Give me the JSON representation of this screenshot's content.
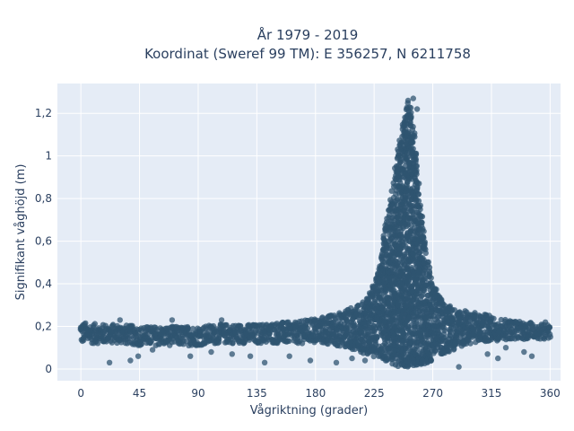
{
  "chart_data": {
    "type": "scatter",
    "title_line1": "År 1979 - 2019",
    "title_line2": "Koordinat (Sweref 99 TM): E 356257, N 6211758",
    "xlabel": "Vågriktning (grader)",
    "ylabel": "Signifikant våghöjd (m)",
    "xlim": [
      -18,
      368
    ],
    "ylim": [
      -0.055,
      1.34
    ],
    "x_ticks": [
      0,
      45,
      90,
      135,
      180,
      225,
      270,
      315,
      360
    ],
    "y_ticks": [
      0,
      0.2,
      0.4,
      0.6,
      0.8,
      1,
      1.2
    ],
    "y_tick_labels": [
      "0",
      "0,2",
      "0,4",
      "0,6",
      "0,8",
      "1",
      "1,2"
    ],
    "grid": true,
    "marker_color": "#2f5470",
    "plot_bg": "#e5ecf6",
    "series": [
      {
        "band_envelope": [
          [
            0,
            0.12,
            0.22
          ],
          [
            15,
            0.12,
            0.21
          ],
          [
            30,
            0.12,
            0.21
          ],
          [
            45,
            0.11,
            0.2
          ],
          [
            60,
            0.11,
            0.2
          ],
          [
            75,
            0.11,
            0.2
          ],
          [
            90,
            0.11,
            0.2
          ],
          [
            105,
            0.12,
            0.21
          ],
          [
            120,
            0.12,
            0.21
          ],
          [
            135,
            0.12,
            0.21
          ],
          [
            150,
            0.12,
            0.22
          ],
          [
            165,
            0.12,
            0.22
          ],
          [
            180,
            0.12,
            0.24
          ],
          [
            195,
            0.11,
            0.26
          ],
          [
            205,
            0.1,
            0.28
          ],
          [
            215,
            0.08,
            0.31
          ],
          [
            222,
            0.06,
            0.36
          ],
          [
            228,
            0.05,
            0.45
          ],
          [
            232,
            0.04,
            0.6
          ],
          [
            236,
            0.03,
            0.75
          ],
          [
            240,
            0.02,
            0.9
          ],
          [
            244,
            0.01,
            1.05
          ],
          [
            247,
            0.01,
            1.15
          ],
          [
            250,
            0.01,
            1.24
          ],
          [
            252,
            0.01,
            1.27
          ],
          [
            254,
            0.01,
            1.2
          ],
          [
            256,
            0.01,
            1.1
          ],
          [
            258,
            0.01,
            0.97
          ],
          [
            260,
            0.02,
            0.82
          ],
          [
            263,
            0.02,
            0.65
          ],
          [
            266,
            0.03,
            0.52
          ],
          [
            270,
            0.04,
            0.42
          ],
          [
            275,
            0.06,
            0.34
          ],
          [
            282,
            0.08,
            0.3
          ],
          [
            290,
            0.1,
            0.28
          ],
          [
            300,
            0.12,
            0.27
          ],
          [
            315,
            0.13,
            0.25
          ],
          [
            330,
            0.14,
            0.23
          ],
          [
            345,
            0.14,
            0.22
          ],
          [
            360,
            0.14,
            0.22
          ]
        ],
        "scattered_points": [
          [
            22,
            0.03
          ],
          [
            38,
            0.04
          ],
          [
            44,
            0.06
          ],
          [
            55,
            0.09
          ],
          [
            84,
            0.06
          ],
          [
            100,
            0.08
          ],
          [
            116,
            0.07
          ],
          [
            130,
            0.06
          ],
          [
            141,
            0.03
          ],
          [
            160,
            0.06
          ],
          [
            176,
            0.04
          ],
          [
            196,
            0.03
          ],
          [
            255,
            1.27
          ],
          [
            251,
            1.26
          ],
          [
            258,
            1.22
          ],
          [
            233,
            0.22
          ],
          [
            246,
            0.02
          ],
          [
            262,
            0.04
          ],
          [
            290,
            0.01
          ],
          [
            320,
            0.05
          ],
          [
            326,
            0.1
          ],
          [
            340,
            0.08
          ],
          [
            346,
            0.06
          ],
          [
            312,
            0.07
          ],
          [
            30,
            0.23
          ],
          [
            70,
            0.23
          ],
          [
            108,
            0.23
          ],
          [
            208,
            0.05
          ],
          [
            218,
            0.04
          ]
        ]
      }
    ]
  }
}
